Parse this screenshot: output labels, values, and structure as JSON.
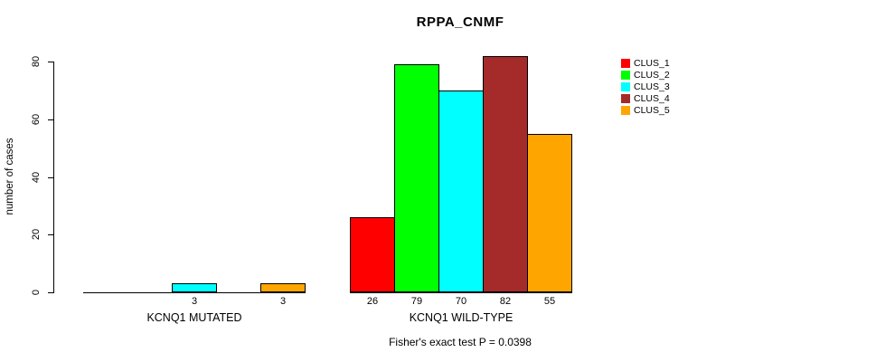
{
  "title": "RPPA_CNMF",
  "chart_data": {
    "type": "bar",
    "title": "RPPA_CNMF",
    "xlabel": "",
    "ylabel": "number of cases",
    "ylim": [
      0,
      80
    ],
    "yticks": [
      0,
      20,
      40,
      60,
      80
    ],
    "grid": false,
    "legend_position": "right",
    "groups": [
      "KCNQ1 MUTATED",
      "KCNQ1 WILD-TYPE"
    ],
    "series": [
      {
        "name": "CLUS_1",
        "color": "#FF0000",
        "values": [
          0,
          26
        ]
      },
      {
        "name": "CLUS_2",
        "color": "#00FF00",
        "values": [
          0,
          79
        ]
      },
      {
        "name": "CLUS_3",
        "color": "#00FFFF",
        "values": [
          3,
          70
        ]
      },
      {
        "name": "CLUS_4",
        "color": "#A52A2A",
        "values": [
          0,
          82
        ]
      },
      {
        "name": "CLUS_5",
        "color": "#FFA500",
        "values": [
          3,
          55
        ]
      }
    ],
    "bar_value_labels": {
      "show_if_positive": true
    },
    "annotation": "Fisher's exact test P = 0.0398",
    "axis_color": "#000000",
    "bar_border_color": "#000000"
  }
}
